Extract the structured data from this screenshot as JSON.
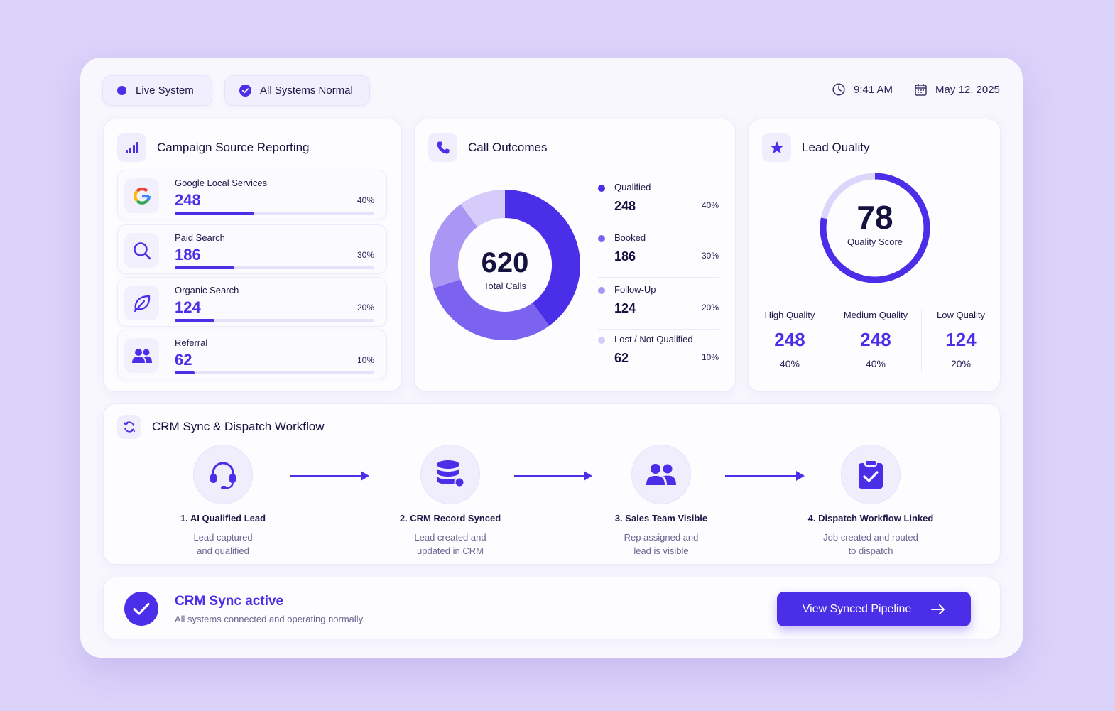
{
  "status": {
    "live_label": "Live System",
    "systems_label": "All Systems Normal",
    "time": "9:41 AM",
    "date": "May 12, 2025"
  },
  "campaign": {
    "title": "Campaign Source Reporting",
    "sources": [
      {
        "name": "Google Local Services",
        "value": "248",
        "percent": "40%",
        "share": 0.4,
        "icon": "google-icon"
      },
      {
        "name": "Paid Search",
        "value": "186",
        "percent": "30%",
        "share": 0.3,
        "icon": "search-icon"
      },
      {
        "name": "Organic Search",
        "value": "124",
        "percent": "20%",
        "share": 0.2,
        "icon": "leaf-icon"
      },
      {
        "name": "Referral",
        "value": "62",
        "percent": "10%",
        "share": 0.1,
        "icon": "users-icon"
      }
    ]
  },
  "calls": {
    "title": "Call Outcomes",
    "total": "620",
    "total_label": "Total Calls",
    "outcomes": [
      {
        "name": "Qualified",
        "value": "248",
        "percent": "40%",
        "share": 0.4,
        "color": "#4b2ee8"
      },
      {
        "name": "Booked",
        "value": "186",
        "percent": "30%",
        "share": 0.3,
        "color": "#7b62ef"
      },
      {
        "name": "Follow-Up",
        "value": "124",
        "percent": "20%",
        "share": 0.2,
        "color": "#a996f5"
      },
      {
        "name": "Lost / Not Qualified",
        "value": "62",
        "percent": "10%",
        "share": 0.1,
        "color": "#d5ccfb"
      }
    ]
  },
  "lead_quality": {
    "title": "Lead Quality",
    "score": "78",
    "score_label": "Quality Score",
    "score_value": 78,
    "tiers": [
      {
        "label": "High Quality",
        "value": "248",
        "percent": "40%"
      },
      {
        "label": "Medium Quality",
        "value": "248",
        "percent": "40%"
      },
      {
        "label": "Low Quality",
        "value": "124",
        "percent": "20%"
      }
    ]
  },
  "workflow": {
    "title": "CRM Sync & Dispatch Workflow",
    "steps": [
      {
        "title": "1. AI Qualified Lead",
        "desc1": "Lead captured",
        "desc2": "and qualified",
        "icon": "headset-icon"
      },
      {
        "title": "2. CRM Record Synced",
        "desc1": "Lead created and",
        "desc2": "updated in CRM",
        "icon": "database-icon"
      },
      {
        "title": "3. Sales Team Visible",
        "desc1": "Rep assigned and",
        "desc2": "lead is visible",
        "icon": "team-icon"
      },
      {
        "title": "4. Dispatch Workflow Linked",
        "desc1": "Job created and routed",
        "desc2": "to dispatch",
        "icon": "clipboard-check-icon"
      }
    ]
  },
  "sync": {
    "title": "CRM Sync active",
    "subtitle": "All systems connected and operating normally.",
    "button_label": "View Synced Pipeline"
  },
  "colors": {
    "accent": "#4b2ee8",
    "background": "#dcd3fa"
  }
}
